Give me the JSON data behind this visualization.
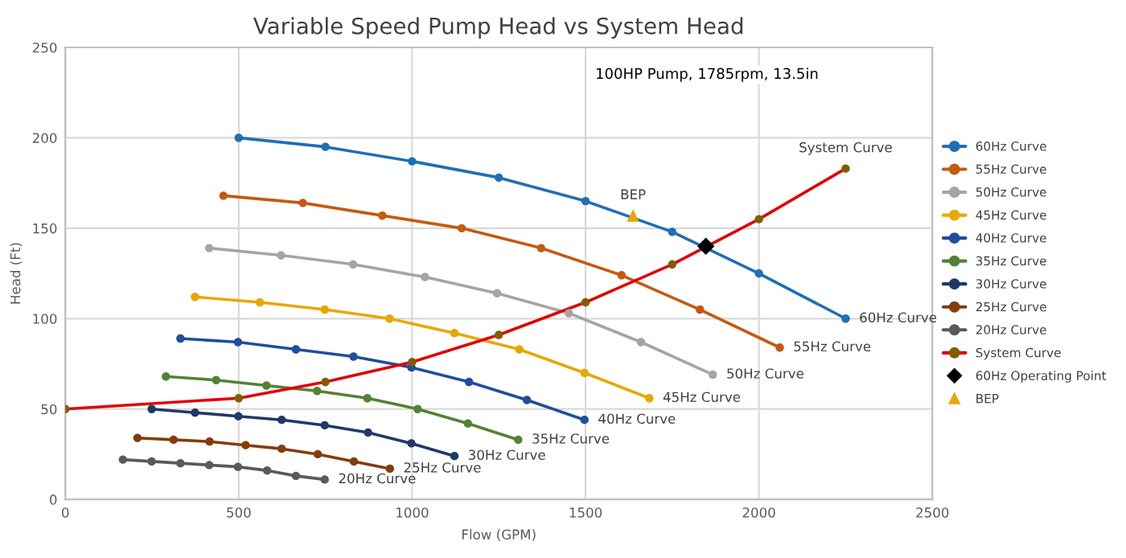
{
  "chart_data": {
    "type": "line",
    "title": "Variable Speed Pump Head vs System Head",
    "xlabel": "Flow (GPM)",
    "ylabel": "Head (Ft)",
    "xlim": [
      0,
      2500
    ],
    "xticks": [
      0,
      500,
      1000,
      1500,
      2000,
      2500
    ],
    "ylim": [
      0,
      250
    ],
    "yticks": [
      0,
      50,
      100,
      150,
      200,
      250
    ],
    "grid": true,
    "legend": "right",
    "marker": "circle",
    "series": [
      {
        "name": "60Hz Curve",
        "color": "#1f6fb5",
        "x": [
          500,
          750,
          1000,
          1250,
          1500,
          1750,
          2000,
          2250
        ],
        "values": [
          200,
          195,
          187,
          178,
          165,
          148,
          125,
          100
        ]
      },
      {
        "name": "55Hz Curve",
        "color": "#c55a11",
        "x": [
          456,
          685,
          914,
          1143,
          1372,
          1604,
          1830,
          2060
        ],
        "values": [
          168,
          164,
          157,
          150,
          139,
          124,
          105,
          84
        ]
      },
      {
        "name": "50Hz Curve",
        "color": "#a5a5a5",
        "x": [
          415,
          622,
          830,
          1037,
          1245,
          1452,
          1660,
          1867
        ],
        "values": [
          139,
          135,
          130,
          123,
          114,
          103,
          87,
          69
        ]
      },
      {
        "name": "45Hz Curve",
        "color": "#e6a800",
        "x": [
          374,
          561,
          748,
          935,
          1122,
          1309,
          1497,
          1684
        ],
        "values": [
          112,
          109,
          105,
          100,
          92,
          83,
          70,
          56
        ]
      },
      {
        "name": "40Hz Curve",
        "color": "#1f4e9c",
        "x": [
          332,
          498,
          665,
          831,
          998,
          1164,
          1331,
          1497
        ],
        "values": [
          89,
          87,
          83,
          79,
          73,
          65,
          55,
          44
        ]
      },
      {
        "name": "35Hz Curve",
        "color": "#548235",
        "x": [
          290,
          435,
          580,
          726,
          871,
          1016,
          1161,
          1306
        ],
        "values": [
          68,
          66,
          63,
          60,
          56,
          50,
          42,
          33
        ]
      },
      {
        "name": "30Hz Curve",
        "color": "#1f3a68",
        "x": [
          249,
          374,
          499,
          624,
          748,
          873,
          998,
          1122
        ],
        "values": [
          50,
          48,
          46,
          44,
          41,
          37,
          31,
          24
        ]
      },
      {
        "name": "25Hz Curve",
        "color": "#843c0c",
        "x": [
          208,
          312,
          416,
          520,
          624,
          728,
          832,
          936
        ],
        "values": [
          34,
          33,
          32,
          30,
          28,
          25,
          21,
          17
        ]
      },
      {
        "name": "20Hz Curve",
        "color": "#595959",
        "x": [
          166,
          249,
          332,
          415,
          498,
          582,
          665,
          748
        ],
        "values": [
          22,
          21,
          20,
          19,
          18,
          16,
          13,
          11
        ]
      },
      {
        "name": "System Curve",
        "color": "#e00000",
        "colors": [
          "#7f6000",
          "#7f6000",
          "#7f6000",
          "#7f6000",
          "#7f6000",
          "#7f6000",
          "#7f6000",
          "#7f6000",
          "#7f6000"
        ],
        "x": [
          0,
          500,
          750,
          1000,
          1250,
          1500,
          1750,
          2000,
          2250
        ],
        "values": [
          50,
          56,
          65,
          76,
          91,
          109,
          130,
          155,
          183
        ]
      },
      {
        "name": "60Hz Operating Point",
        "type": "scatter",
        "marker": "diamond",
        "color": "#000000",
        "x": [
          1847
        ],
        "values": [
          140
        ]
      },
      {
        "name": "BEP",
        "type": "scatter",
        "marker": "triangle",
        "color": "#e6a800",
        "x": [
          1637
        ],
        "values": [
          157
        ]
      }
    ],
    "annotations": [
      "100HP Pump, 1785rpm, 13.5in",
      {
        "text": "BEP",
        "x": 1637,
        "y": 157
      },
      {
        "text": "System Curve",
        "x": 2250,
        "y": 183
      },
      {
        "text": "60Hz Curve",
        "x": 2250,
        "y": 100
      },
      {
        "text": "55Hz Curve",
        "x": 2060,
        "y": 84
      },
      {
        "text": "50Hz Curve",
        "x": 1867,
        "y": 69
      },
      {
        "text": "45Hz Curve",
        "x": 1684,
        "y": 56
      },
      {
        "text": "40Hz Curve",
        "x": 1497,
        "y": 44
      },
      {
        "text": "35Hz Curve",
        "x": 1306,
        "y": 33
      },
      {
        "text": "30Hz Curve",
        "x": 1122,
        "y": 24
      },
      {
        "text": "25Hz Curve",
        "x": 936,
        "y": 17
      },
      {
        "text": "20Hz Curve",
        "x": 748,
        "y": 11
      }
    ]
  }
}
